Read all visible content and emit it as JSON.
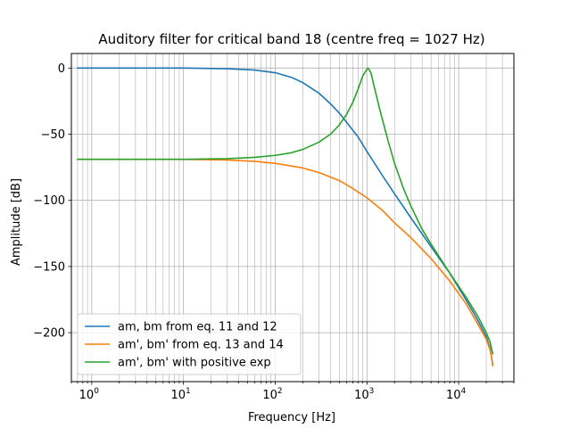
{
  "chart_data": {
    "type": "line",
    "title": "Auditory filter for critical band 18 (centre freq = 1027 Hz)",
    "xlabel": "Frequency [Hz]",
    "ylabel": "Amplitude [dB]",
    "xscale": "log",
    "xlim": [
      0.6,
      40000
    ],
    "ylim": [
      -237,
      11
    ],
    "xticks": [
      {
        "value": 1,
        "base": "10",
        "exp": "0"
      },
      {
        "value": 10,
        "base": "10",
        "exp": "1"
      },
      {
        "value": 100,
        "base": "10",
        "exp": "2"
      },
      {
        "value": 1000,
        "base": "10",
        "exp": "3"
      },
      {
        "value": 10000,
        "base": "10",
        "exp": "4"
      }
    ],
    "yticks": [
      {
        "value": 0,
        "label": "0"
      },
      {
        "value": -50,
        "label": "−50"
      },
      {
        "value": -100,
        "label": "−100"
      },
      {
        "value": -150,
        "label": "−150"
      },
      {
        "value": -200,
        "label": "−200"
      }
    ],
    "grid": true,
    "legend_position": "lower-left",
    "series": [
      {
        "name": "am, bm from eq. 11 and 12",
        "color": "#1f77b4",
        "x": [
          0.7,
          1,
          3,
          10,
          30,
          60,
          100,
          150,
          200,
          300,
          400,
          500,
          600,
          800,
          1000,
          1500,
          2000,
          3000,
          5000,
          8000,
          12000,
          16000,
          20000,
          22000,
          23000,
          23500
        ],
        "y": [
          0,
          0,
          0,
          0,
          -0.5,
          -1.5,
          -3.5,
          -7,
          -11,
          -19,
          -27,
          -34,
          -41,
          -52,
          -63,
          -82,
          -95,
          -113,
          -135,
          -155,
          -175,
          -190,
          -203,
          -212,
          -220,
          -224
        ]
      },
      {
        "name": "am', bm' from eq. 13 and 14",
        "color": "#ff7f0e",
        "x": [
          0.7,
          1,
          3,
          10,
          30,
          60,
          100,
          200,
          300,
          500,
          700,
          1000,
          1500,
          2000,
          3000,
          5000,
          8000,
          12000,
          16000,
          20000,
          22000,
          23000,
          23500
        ],
        "y": [
          -69,
          -69,
          -69,
          -69,
          -69.5,
          -70.5,
          -72,
          -75.5,
          -79,
          -85,
          -91,
          -98,
          -108,
          -117,
          -128,
          -144,
          -161,
          -178,
          -193,
          -205,
          -213,
          -220,
          -225
        ]
      },
      {
        "name": "am', bm' with positive exp",
        "color": "#2ca02c",
        "x": [
          0.7,
          1,
          3,
          10,
          30,
          60,
          100,
          150,
          200,
          300,
          400,
          500,
          600,
          700,
          800,
          900,
          1000,
          1027,
          1100,
          1200,
          1400,
          1700,
          2000,
          2500,
          3000,
          4000,
          5000,
          8000,
          12000,
          16000,
          20000,
          22000,
          23000,
          23500
        ],
        "y": [
          -69,
          -69,
          -69,
          -69,
          -68.5,
          -67.5,
          -66,
          -64,
          -61.5,
          -56,
          -50,
          -43,
          -35,
          -26,
          -16,
          -6,
          -1,
          0,
          -3,
          -14,
          -33,
          -55,
          -72,
          -91,
          -104,
          -122,
          -133,
          -155,
          -173,
          -187,
          -200,
          -207,
          -213,
          -216
        ]
      }
    ]
  }
}
